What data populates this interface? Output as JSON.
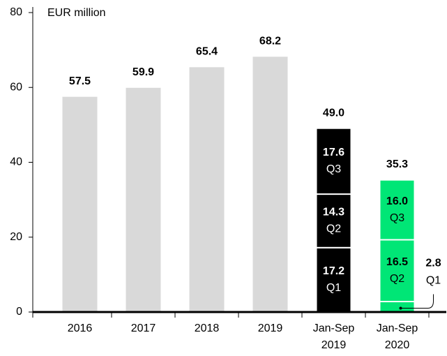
{
  "chart_data": {
    "type": "bar",
    "y_axis_label": "EUR million",
    "categories": [
      "2016",
      "2017",
      "2018",
      "2019",
      "Jan-Sep 2019",
      "Jan-Sep 2020"
    ],
    "values": [
      57.5,
      59.9,
      65.4,
      68.2,
      49.0,
      35.3
    ],
    "value_labels": [
      "57.5",
      "59.9",
      "65.4",
      "68.2",
      "49.0",
      "35.3"
    ],
    "colors": [
      "#d9d9d9",
      "#d9d9d9",
      "#d9d9d9",
      "#d9d9d9",
      "#000000",
      "#00e676"
    ],
    "segment_text_colors": [
      null,
      null,
      null,
      null,
      "#ffffff",
      "#000000"
    ],
    "series": [
      {
        "name": "Q1",
        "values": [
          null,
          null,
          null,
          null,
          17.2,
          2.8
        ]
      },
      {
        "name": "Q2",
        "values": [
          null,
          null,
          null,
          null,
          14.3,
          16.5
        ]
      },
      {
        "name": "Q3",
        "values": [
          null,
          null,
          null,
          null,
          17.6,
          16.0
        ],
        "value_labels": [
          null,
          null,
          null,
          null,
          "17.6",
          "16.0"
        ]
      }
    ],
    "ylim": [
      0,
      80
    ],
    "yticks": [
      0,
      20,
      40,
      60,
      80
    ]
  }
}
